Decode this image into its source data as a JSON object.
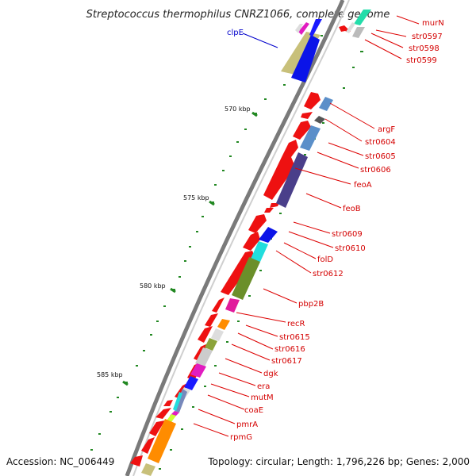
{
  "title": "Streptococcus thermophilus CNRZ1066, complete genome",
  "footer": {
    "accession": "Accession: NC_006449",
    "info": "Topology: circular; Length: 1,796,226 bp; Genes: 2,000"
  },
  "ticks": [
    "570 kbp",
    "575 kbp",
    "580 kbp",
    "585 kbp"
  ],
  "labels": {
    "clpE": "clpE",
    "murN": "murN",
    "str0597": "str0597",
    "str0598": "str0598",
    "str0599": "str0599",
    "argF": "argF",
    "str0604": "str0604",
    "str0605": "str0605",
    "str0606": "str0606",
    "feoA": "feoA",
    "feoB": "feoB",
    "str0609": "str0609",
    "str0610": "str0610",
    "folD": "folD",
    "str0612": "str0612",
    "pbp2B": "pbp2B",
    "recR": "recR",
    "str0615": "str0615",
    "str0616": "str0616",
    "str0617": "str0617",
    "dgk": "dgk",
    "era": "era",
    "mutM": "mutM",
    "coaE": "coaE",
    "pmrA": "pmrA",
    "rpmG": "rpmG"
  },
  "colors": {
    "forward_gene": "#ee1111",
    "label_line": "#dd0000",
    "backbone": "#888888",
    "tick_mark": "#228822",
    "clpE_label": "#0000cc"
  }
}
